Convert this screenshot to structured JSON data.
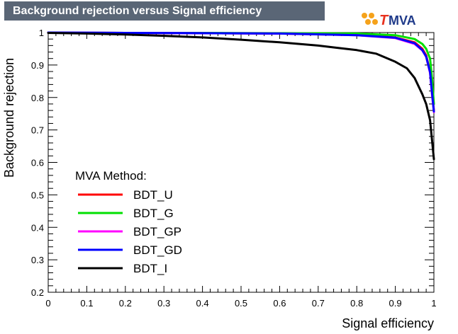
{
  "title": "Background rejection versus Signal efficiency",
  "logo": {
    "text": "MVA",
    "accent": "T"
  },
  "legend_title": "MVA Method:",
  "colors": {
    "title_bg": "#5a6676",
    "BDT_U": "#ff0000",
    "BDT_G": "#00e000",
    "BDT_GP": "#ff00ff",
    "BDT_GD": "#0000ff",
    "BDT_I": "#000000",
    "logo_orange": "#f5a21b"
  },
  "chart_data": {
    "type": "line",
    "title": "Background rejection versus Signal efficiency",
    "xlabel": "Signal efficiency",
    "ylabel": "Background rejection",
    "xlim": [
      0,
      1
    ],
    "ylim": [
      0.2,
      1
    ],
    "xticks": [
      "0",
      "0.1",
      "0.2",
      "0.3",
      "0.4",
      "0.5",
      "0.6",
      "0.7",
      "0.8",
      "0.9",
      "1"
    ],
    "yticks": [
      "0.2",
      "0.3",
      "0.4",
      "0.5",
      "0.6",
      "0.7",
      "0.8",
      "0.9",
      "1"
    ],
    "legend_position": "bottom-left",
    "series": [
      {
        "name": "BDT_U",
        "color": "#ff0000",
        "x": [
          0,
          0.2,
          0.4,
          0.6,
          0.8,
          0.9,
          0.95,
          0.97,
          0.98,
          0.99,
          0.995,
          1.0
        ],
        "y": [
          1.0,
          0.999,
          0.998,
          0.997,
          0.993,
          0.985,
          0.97,
          0.95,
          0.93,
          0.88,
          0.82,
          0.76
        ]
      },
      {
        "name": "BDT_G",
        "color": "#00e000",
        "x": [
          0,
          0.2,
          0.4,
          0.6,
          0.8,
          0.9,
          0.95,
          0.97,
          0.98,
          0.99,
          0.995,
          1.0
        ],
        "y": [
          1.0,
          0.999,
          0.999,
          0.998,
          0.997,
          0.992,
          0.98,
          0.965,
          0.95,
          0.92,
          0.86,
          0.78
        ]
      },
      {
        "name": "BDT_GP",
        "color": "#ff00ff",
        "x": [
          0,
          0.2,
          0.4,
          0.6,
          0.8,
          0.9,
          0.95,
          0.97,
          0.98,
          0.99,
          0.995,
          1.0
        ],
        "y": [
          1.0,
          0.999,
          0.998,
          0.997,
          0.992,
          0.983,
          0.965,
          0.945,
          0.925,
          0.875,
          0.81,
          0.755
        ]
      },
      {
        "name": "BDT_GD",
        "color": "#0000ff",
        "x": [
          0,
          0.2,
          0.4,
          0.6,
          0.8,
          0.9,
          0.95,
          0.97,
          0.98,
          0.99,
          0.995,
          1.0
        ],
        "y": [
          1.0,
          0.999,
          0.998,
          0.997,
          0.992,
          0.984,
          0.967,
          0.946,
          0.926,
          0.878,
          0.815,
          0.757
        ]
      },
      {
        "name": "BDT_I",
        "color": "#000000",
        "x": [
          0,
          0.1,
          0.2,
          0.3,
          0.4,
          0.5,
          0.6,
          0.7,
          0.75,
          0.8,
          0.85,
          0.9,
          0.93,
          0.95,
          0.97,
          0.98,
          0.99,
          0.995,
          1.0
        ],
        "y": [
          0.999,
          0.997,
          0.994,
          0.99,
          0.985,
          0.978,
          0.97,
          0.96,
          0.953,
          0.946,
          0.935,
          0.91,
          0.89,
          0.86,
          0.81,
          0.78,
          0.73,
          0.67,
          0.61
        ]
      }
    ]
  }
}
